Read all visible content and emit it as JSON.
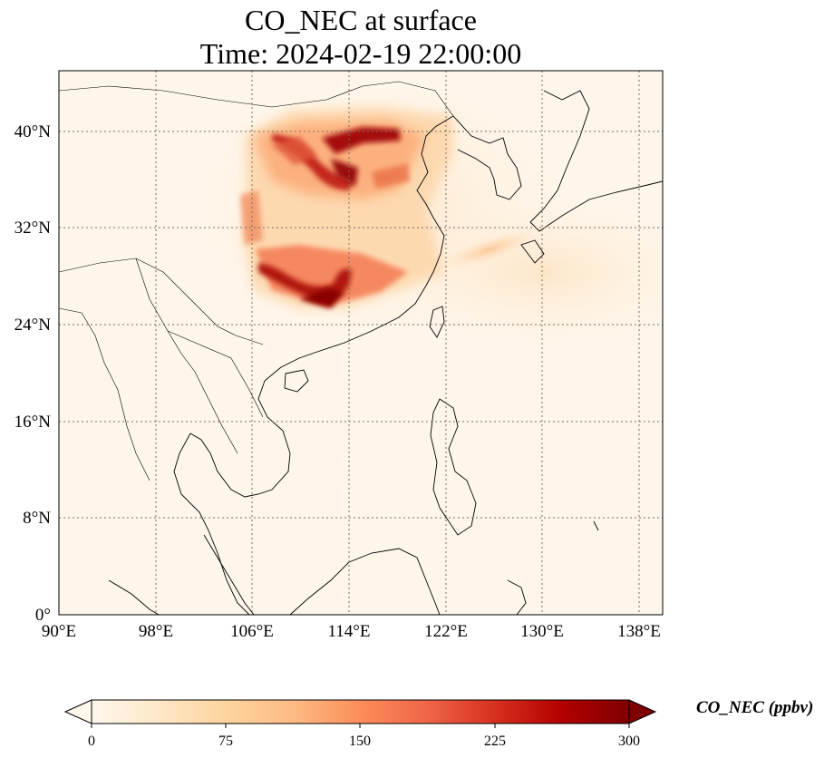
{
  "title": {
    "line1": "CO_NEC at surface",
    "line2": "Time: 2024-02-19 22:00:00"
  },
  "map": {
    "lon_range": [
      90,
      140
    ],
    "lat_range": [
      0,
      45
    ],
    "lon_ticks": [
      "90°E",
      "98°E",
      "106°E",
      "114°E",
      "122°E",
      "130°E",
      "138°E"
    ],
    "lat_ticks": [
      "0°",
      "8°N",
      "16°N",
      "24°N",
      "32°N",
      "40°N"
    ],
    "gridlines": true,
    "colormap": "OrRd"
  },
  "colorbar": {
    "label": "CO_NEC (ppbv)",
    "ticks": [
      "0",
      "75",
      "150",
      "225",
      "300"
    ],
    "range": [
      0,
      300
    ],
    "extend": "both",
    "colors": [
      "#fff7ec",
      "#fee8c8",
      "#fdd49e",
      "#fdbb84",
      "#fc8d59",
      "#ef6548",
      "#d7301f",
      "#b30000",
      "#7f0000"
    ]
  }
}
